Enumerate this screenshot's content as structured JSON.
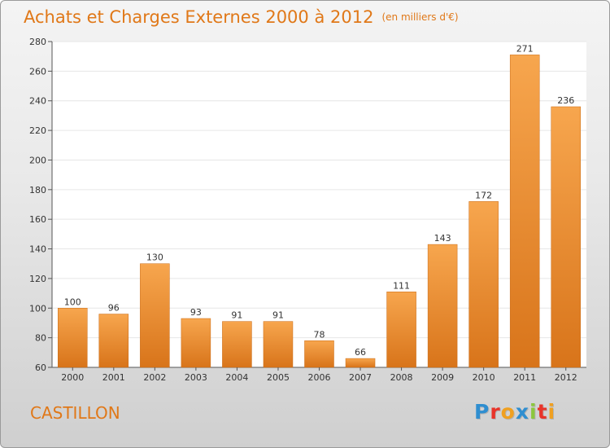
{
  "header": {
    "title": "Achats et Charges Externes 2000 à 2012",
    "unit": "(en milliers d'€)"
  },
  "footer": {
    "place": "CASTILLON",
    "logo": [
      {
        "char": "P",
        "color": "#2f8ed0"
      },
      {
        "char": "r",
        "color": "#e8342a"
      },
      {
        "char": "o",
        "color": "#f0a020"
      },
      {
        "char": "x",
        "color": "#2f8ed0"
      },
      {
        "char": "i",
        "color": "#8cc63e"
      },
      {
        "char": "t",
        "color": "#e8342a"
      },
      {
        "char": "i",
        "color": "#f0a020"
      }
    ]
  },
  "colors": {
    "accent": "#e07818",
    "bar_light": "#f7a64e",
    "bar_dark": "#d8741a",
    "plot_bg": "#ffffff",
    "grid": "#e6e6e6"
  },
  "chart_data": {
    "type": "bar",
    "categories": [
      "2000",
      "2001",
      "2002",
      "2003",
      "2004",
      "2005",
      "2006",
      "2007",
      "2008",
      "2009",
      "2010",
      "2011",
      "2012"
    ],
    "values": [
      100,
      96,
      130,
      93,
      91,
      91,
      78,
      66,
      111,
      143,
      172,
      271,
      236
    ],
    "ylim": [
      60,
      280
    ],
    "yticks": [
      60,
      80,
      100,
      120,
      140,
      160,
      180,
      200,
      220,
      240,
      260,
      280
    ],
    "grid": true,
    "data_labels": true
  }
}
